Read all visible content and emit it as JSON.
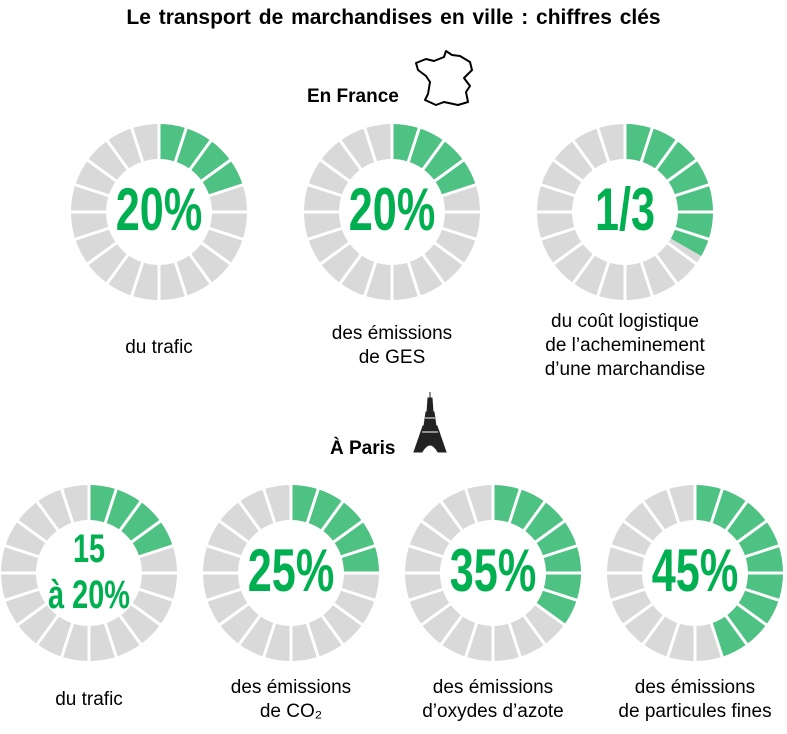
{
  "title": "Le transport de marchandises en ville : chiffres clés",
  "colors": {
    "green_fill": "#4dc283",
    "green_text": "#00b050",
    "gray": "#d9d9d9"
  },
  "sections": {
    "france": {
      "label": "En France",
      "icon": "france-map-icon"
    },
    "paris": {
      "label": "À Paris",
      "icon": "eiffel-tower-icon"
    }
  },
  "chart_data": {
    "type": "donut",
    "segments_per_ring": 20,
    "france": [
      {
        "value_label": "20%",
        "fraction": 0.2,
        "caption": [
          "du trafic"
        ]
      },
      {
        "value_label": "20%",
        "fraction": 0.2,
        "caption": [
          "des émissions",
          "de GES"
        ]
      },
      {
        "value_label": "1/3",
        "fraction": 0.3333,
        "caption": [
          "du coût logistique",
          "de l’acheminement",
          "d’une marchandise"
        ]
      }
    ],
    "paris": [
      {
        "value_label": [
          "15",
          "à 20%"
        ],
        "fraction": 0.2,
        "caption": [
          "du trafic"
        ]
      },
      {
        "value_label": "25%",
        "fraction": 0.25,
        "caption": [
          "des émissions",
          "de CO₂"
        ]
      },
      {
        "value_label": "35%",
        "fraction": 0.35,
        "caption": [
          "des émissions",
          "d’oxydes d’azote"
        ]
      },
      {
        "value_label": "45%",
        "fraction": 0.45,
        "caption": [
          "des émissions",
          "de particules fines"
        ]
      }
    ]
  }
}
